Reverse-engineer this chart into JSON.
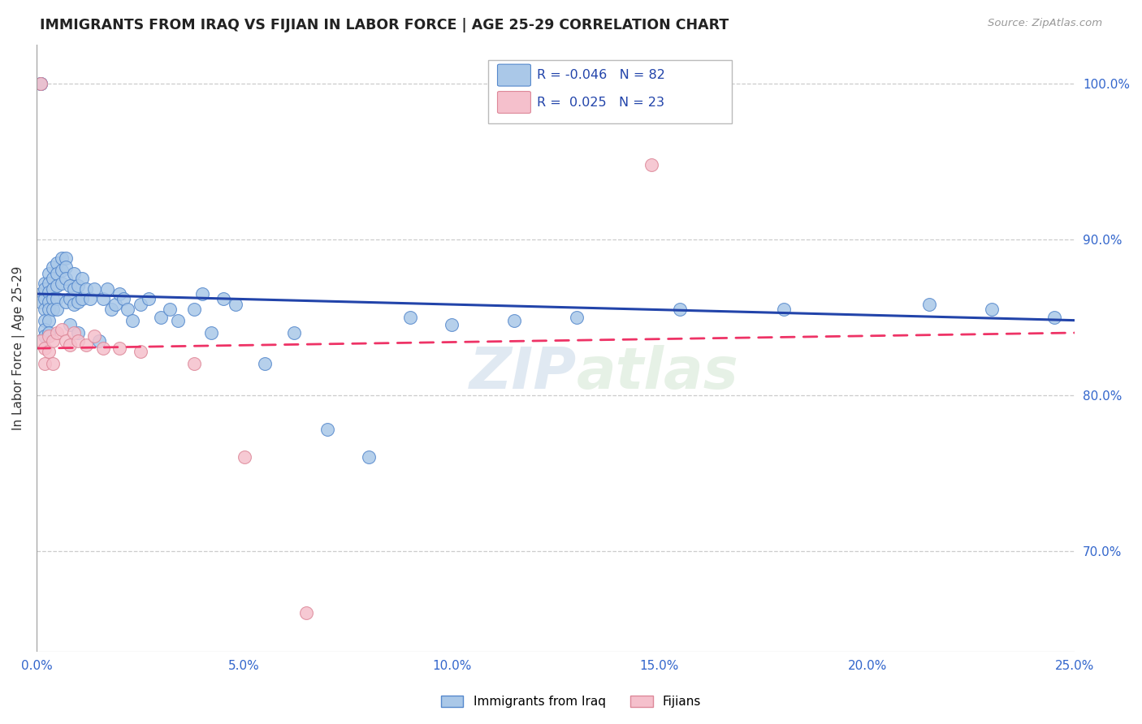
{
  "title": "IMMIGRANTS FROM IRAQ VS FIJIAN IN LABOR FORCE | AGE 25-29 CORRELATION CHART",
  "source": "Source: ZipAtlas.com",
  "ylabel": "In Labor Force | Age 25-29",
  "xlim": [
    0.0,
    0.25
  ],
  "ylim": [
    0.635,
    1.025
  ],
  "R_iraq": -0.046,
  "N_iraq": 82,
  "R_fijian": 0.025,
  "N_fijian": 23,
  "iraq_color": "#aac8e8",
  "iraq_edge_color": "#5588cc",
  "fijian_color": "#f5c0cc",
  "fijian_edge_color": "#dd8899",
  "iraq_line_color": "#2244aa",
  "fijian_line_color": "#ee3366",
  "grid_color": "#cccccc",
  "background_color": "#ffffff",
  "iraq_x": [
    0.001,
    0.001,
    0.001,
    0.001,
    0.001,
    0.002,
    0.002,
    0.002,
    0.002,
    0.002,
    0.002,
    0.002,
    0.003,
    0.003,
    0.003,
    0.003,
    0.003,
    0.003,
    0.003,
    0.004,
    0.004,
    0.004,
    0.004,
    0.004,
    0.005,
    0.005,
    0.005,
    0.005,
    0.005,
    0.006,
    0.006,
    0.006,
    0.007,
    0.007,
    0.007,
    0.007,
    0.008,
    0.008,
    0.008,
    0.009,
    0.009,
    0.009,
    0.01,
    0.01,
    0.01,
    0.011,
    0.011,
    0.012,
    0.013,
    0.014,
    0.015,
    0.016,
    0.017,
    0.018,
    0.019,
    0.02,
    0.021,
    0.022,
    0.023,
    0.025,
    0.027,
    0.03,
    0.032,
    0.034,
    0.038,
    0.04,
    0.042,
    0.045,
    0.048,
    0.055,
    0.062,
    0.07,
    0.08,
    0.09,
    0.1,
    0.115,
    0.13,
    0.155,
    0.18,
    0.215,
    0.23,
    0.245
  ],
  "iraq_y": [
    1.0,
    1.0,
    1.0,
    0.865,
    0.86,
    0.872,
    0.868,
    0.862,
    0.855,
    0.848,
    0.842,
    0.838,
    0.878,
    0.872,
    0.866,
    0.86,
    0.855,
    0.848,
    0.84,
    0.882,
    0.875,
    0.868,
    0.862,
    0.855,
    0.885,
    0.878,
    0.87,
    0.862,
    0.855,
    0.888,
    0.88,
    0.872,
    0.888,
    0.882,
    0.875,
    0.86,
    0.87,
    0.862,
    0.845,
    0.878,
    0.868,
    0.858,
    0.87,
    0.86,
    0.84,
    0.875,
    0.862,
    0.868,
    0.862,
    0.868,
    0.835,
    0.862,
    0.868,
    0.855,
    0.858,
    0.865,
    0.862,
    0.855,
    0.848,
    0.858,
    0.862,
    0.85,
    0.855,
    0.848,
    0.855,
    0.865,
    0.84,
    0.862,
    0.858,
    0.82,
    0.84,
    0.778,
    0.76,
    0.85,
    0.845,
    0.848,
    0.85,
    0.855,
    0.855,
    0.858,
    0.855,
    0.85
  ],
  "fijian_x": [
    0.001,
    0.001,
    0.002,
    0.002,
    0.003,
    0.003,
    0.004,
    0.004,
    0.005,
    0.006,
    0.007,
    0.008,
    0.009,
    0.01,
    0.012,
    0.014,
    0.016,
    0.02,
    0.025,
    0.038,
    0.05,
    0.065,
    0.148
  ],
  "fijian_y": [
    1.0,
    0.835,
    0.83,
    0.82,
    0.838,
    0.828,
    0.835,
    0.82,
    0.84,
    0.842,
    0.835,
    0.832,
    0.84,
    0.835,
    0.832,
    0.838,
    0.83,
    0.83,
    0.828,
    0.82,
    0.76,
    0.66,
    0.948
  ],
  "iraq_trend_x": [
    0.0,
    0.25
  ],
  "iraq_trend_y": [
    0.865,
    0.848
  ],
  "fijian_trend_x": [
    0.0,
    0.25
  ],
  "fijian_trend_y": [
    0.83,
    0.84
  ]
}
